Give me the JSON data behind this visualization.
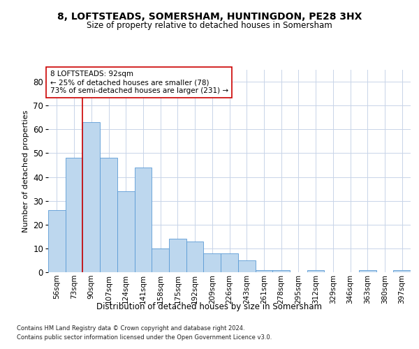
{
  "title1": "8, LOFTSTEADS, SOMERSHAM, HUNTINGDON, PE28 3HX",
  "title2": "Size of property relative to detached houses in Somersham",
  "xlabel": "Distribution of detached houses by size in Somersham",
  "ylabel": "Number of detached properties",
  "footer1": "Contains HM Land Registry data © Crown copyright and database right 2024.",
  "footer2": "Contains public sector information licensed under the Open Government Licence v3.0.",
  "annotation_title": "8 LOFTSTEADS: 92sqm",
  "annotation_line1": "← 25% of detached houses are smaller (78)",
  "annotation_line2": "73% of semi-detached houses are larger (231) →",
  "bar_color": "#bdd7ee",
  "bar_edge_color": "#5b9bd5",
  "property_line_color": "#cc0000",
  "annotation_box_color": "#ffffff",
  "annotation_box_edge": "#cc0000",
  "background_color": "#ffffff",
  "grid_color": "#c8d4e8",
  "categories": [
    "56sqm",
    "73sqm",
    "90sqm",
    "107sqm",
    "124sqm",
    "141sqm",
    "158sqm",
    "175sqm",
    "192sqm",
    "209sqm",
    "226sqm",
    "243sqm",
    "261sqm",
    "278sqm",
    "295sqm",
    "312sqm",
    "329sqm",
    "346sqm",
    "363sqm",
    "380sqm",
    "397sqm"
  ],
  "values": [
    26,
    48,
    63,
    48,
    34,
    44,
    10,
    14,
    13,
    8,
    8,
    5,
    1,
    1,
    0,
    1,
    0,
    0,
    1,
    0,
    1
  ],
  "property_line_x": 1.5,
  "ylim": [
    0,
    85
  ],
  "yticks": [
    0,
    10,
    20,
    30,
    40,
    50,
    60,
    70,
    80
  ],
  "figsize": [
    6.0,
    5.0
  ],
  "dpi": 100,
  "title1_fontsize": 10,
  "title2_fontsize": 8.5,
  "ylabel_fontsize": 8,
  "xlabel_fontsize": 8.5,
  "tick_fontsize": 7.5,
  "ytick_fontsize": 8.5,
  "annotation_fontsize": 7.5,
  "footer_fontsize": 6
}
